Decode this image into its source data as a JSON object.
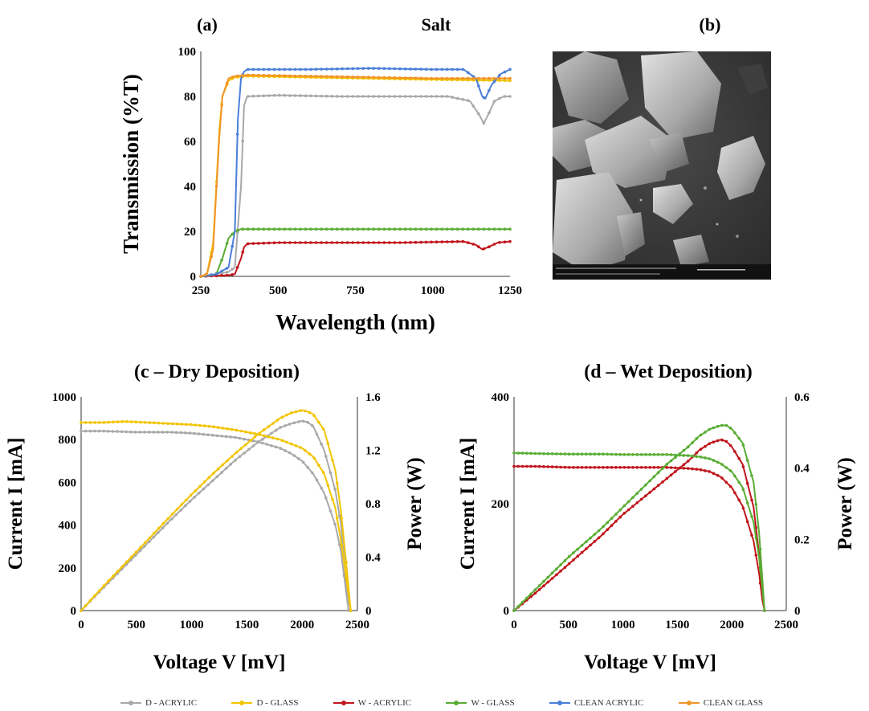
{
  "panel_a_label": "(a)",
  "panel_b_label": "(b)",
  "legend": [
    {
      "name": "D - ACRYLIC",
      "color": "#a9a9a9"
    },
    {
      "name": "D - GLASS",
      "color": "#f2c400"
    },
    {
      "name": "W - ACRYLIC",
      "color": "#c0161c"
    },
    {
      "name": "W - GLASS",
      "color": "#59ad34"
    },
    {
      "name": "CLEAN ACRYLIC",
      "color": "#4a7fd8"
    },
    {
      "name": "CLEAN GLASS",
      "color": "#f0952a"
    }
  ],
  "chart_data": [
    {
      "id": "a",
      "type": "line",
      "title": "Salt",
      "xlabel": "Wavelength (nm)",
      "ylabel": "Transmission (%T)",
      "xlim": [
        250,
        1250
      ],
      "ylim": [
        0,
        100
      ],
      "xticks": [
        250,
        500,
        750,
        1000,
        1250
      ],
      "yticks": [
        0,
        20,
        40,
        60,
        80,
        100
      ],
      "series": [
        {
          "name": "D - ACRYLIC",
          "color": "#a9a9a9",
          "x": [
            250,
            300,
            340,
            360,
            380,
            390,
            400,
            500,
            700,
            900,
            1050,
            1120,
            1150,
            1165,
            1180,
            1200,
            1230,
            1250
          ],
          "y": [
            0,
            1,
            2,
            4,
            40,
            76,
            80,
            80.5,
            80,
            80,
            80,
            78,
            72,
            68,
            72,
            78,
            80,
            80
          ]
        },
        {
          "name": "D - GLASS",
          "color": "#f2c400",
          "x": [
            250,
            270,
            290,
            300,
            310,
            320,
            340,
            360,
            400,
            600,
            800,
            1000,
            1250
          ],
          "y": [
            0,
            1,
            15,
            40,
            65,
            80,
            87,
            88.5,
            89,
            88.5,
            88,
            87.5,
            87
          ]
        },
        {
          "name": "W - ACRYLIC",
          "color": "#c0161c",
          "x": [
            250,
            340,
            360,
            380,
            390,
            400,
            500,
            700,
            900,
            1100,
            1140,
            1160,
            1180,
            1210,
            1250
          ],
          "y": [
            0,
            0.5,
            1,
            8,
            13,
            14.5,
            15,
            15,
            15,
            15.5,
            14,
            12,
            13,
            15,
            15.5
          ]
        },
        {
          "name": "W - GLASS",
          "color": "#59ad34",
          "x": [
            250,
            280,
            300,
            320,
            340,
            360,
            380,
            400,
            600,
            800,
            1000,
            1250
          ],
          "y": [
            0,
            0.5,
            1,
            8,
            17,
            20,
            21,
            21,
            21,
            21,
            21,
            21
          ]
        },
        {
          "name": "CLEAN ACRYLIC",
          "color": "#4a7fd8",
          "x": [
            250,
            300,
            340,
            360,
            370,
            380,
            390,
            400,
            600,
            800,
            1000,
            1100,
            1140,
            1160,
            1170,
            1190,
            1220,
            1250
          ],
          "y": [
            0,
            1,
            4,
            20,
            70,
            88,
            91,
            92,
            92,
            92.5,
            92,
            92,
            88,
            80,
            79,
            85,
            90,
            92
          ]
        },
        {
          "name": "CLEAN GLASS",
          "color": "#f0952a",
          "x": [
            250,
            270,
            290,
            300,
            310,
            320,
            340,
            360,
            400,
            600,
            800,
            1000,
            1250
          ],
          "y": [
            0,
            1,
            12,
            38,
            62,
            80,
            88,
            89,
            89.5,
            89,
            88.5,
            88,
            88
          ]
        }
      ]
    },
    {
      "id": "c",
      "type": "line",
      "title": "(c – Dry Deposition)",
      "xlabel": "Voltage V [mV]",
      "ylabel": "Current I [mA]",
      "y2label": "Power (W)",
      "xlim": [
        0,
        2500
      ],
      "ylim": [
        0,
        1000
      ],
      "y2lim": [
        0,
        1.6
      ],
      "xticks": [
        0,
        500,
        1000,
        1500,
        2000,
        2500
      ],
      "yticks": [
        0,
        200,
        400,
        600,
        800,
        1000
      ],
      "y2ticks": [
        0,
        0.4,
        0.8,
        1.2,
        1.6
      ],
      "series": [
        {
          "name": "D - ACRYLIC",
          "color": "#a9a9a9",
          "axis": "current",
          "x": [
            0,
            200,
            500,
            800,
            1000,
            1200,
            1400,
            1600,
            1800,
            1900,
            2000,
            2100,
            2200,
            2300,
            2350,
            2400,
            2420
          ],
          "y": [
            840,
            840,
            835,
            835,
            830,
            820,
            810,
            790,
            760,
            735,
            700,
            640,
            550,
            400,
            280,
            80,
            0
          ]
        },
        {
          "name": "D - ACRYLIC",
          "color": "#a9a9a9",
          "axis": "power",
          "x": [
            0,
            200,
            500,
            800,
            1000,
            1200,
            1400,
            1600,
            1800,
            1900,
            2000,
            2050,
            2100,
            2200,
            2300,
            2350,
            2400,
            2420
          ],
          "y": [
            0,
            0.17,
            0.42,
            0.67,
            0.83,
            0.98,
            1.13,
            1.26,
            1.37,
            1.4,
            1.42,
            1.41,
            1.38,
            1.2,
            0.9,
            0.65,
            0.2,
            0
          ]
        },
        {
          "name": "D - GLASS",
          "color": "#f2c400",
          "axis": "current",
          "x": [
            0,
            200,
            400,
            600,
            800,
            1000,
            1200,
            1400,
            1600,
            1800,
            1900,
            2000,
            2100,
            2200,
            2300,
            2350,
            2400,
            2440
          ],
          "y": [
            880,
            880,
            885,
            880,
            875,
            870,
            860,
            845,
            825,
            800,
            780,
            760,
            720,
            640,
            480,
            330,
            150,
            0
          ]
        },
        {
          "name": "D - GLASS",
          "color": "#f2c400",
          "axis": "power",
          "x": [
            0,
            200,
            500,
            800,
            1000,
            1200,
            1400,
            1600,
            1800,
            1900,
            2000,
            2050,
            2100,
            2200,
            2300,
            2350,
            2400,
            2440
          ],
          "y": [
            0,
            0.18,
            0.44,
            0.7,
            0.87,
            1.03,
            1.18,
            1.32,
            1.44,
            1.48,
            1.5,
            1.49,
            1.47,
            1.35,
            1.05,
            0.75,
            0.35,
            0
          ]
        }
      ]
    },
    {
      "id": "d",
      "type": "line",
      "title": "(d – Wet Deposition)",
      "xlabel": "Voltage V [mV]",
      "ylabel": "Current I [mA]",
      "y2label": "Power (W)",
      "xlim": [
        0,
        2500
      ],
      "ylim": [
        0,
        400
      ],
      "y2lim": [
        0,
        0.6
      ],
      "xticks": [
        0,
        500,
        1000,
        1500,
        2000,
        2500
      ],
      "yticks": [
        0,
        200,
        400
      ],
      "y2ticks": [
        0,
        0.2,
        0.4,
        0.6
      ],
      "series": [
        {
          "name": "W - ACRYLIC",
          "color": "#c0161c",
          "axis": "current",
          "x": [
            0,
            200,
            500,
            800,
            1000,
            1200,
            1400,
            1600,
            1700,
            1800,
            1900,
            2000,
            2100,
            2200,
            2250,
            2280,
            2300
          ],
          "y": [
            270,
            270,
            268,
            268,
            268,
            268,
            268,
            266,
            264,
            260,
            250,
            230,
            195,
            130,
            70,
            20,
            0
          ]
        },
        {
          "name": "W - ACRYLIC",
          "color": "#c0161c",
          "axis": "power",
          "x": [
            0,
            200,
            500,
            800,
            1000,
            1200,
            1400,
            1600,
            1700,
            1800,
            1900,
            1950,
            2000,
            2100,
            2200,
            2250,
            2280,
            2300
          ],
          "y": [
            0,
            0.05,
            0.13,
            0.21,
            0.27,
            0.32,
            0.37,
            0.42,
            0.45,
            0.47,
            0.48,
            0.475,
            0.46,
            0.41,
            0.29,
            0.16,
            0.05,
            0
          ]
        },
        {
          "name": "W - GLASS",
          "color": "#59ad34",
          "axis": "current",
          "x": [
            0,
            200,
            500,
            800,
            1000,
            1200,
            1400,
            1600,
            1700,
            1800,
            1900,
            2000,
            2100,
            2200,
            2250,
            2280,
            2300
          ],
          "y": [
            295,
            294,
            293,
            293,
            292,
            292,
            292,
            290,
            288,
            284,
            275,
            260,
            230,
            165,
            100,
            40,
            0
          ]
        },
        {
          "name": "W - GLASS",
          "color": "#59ad34",
          "axis": "power",
          "x": [
            0,
            200,
            500,
            800,
            1000,
            1200,
            1400,
            1600,
            1700,
            1800,
            1900,
            1950,
            2000,
            2100,
            2200,
            2250,
            2280,
            2300
          ],
          "y": [
            0,
            0.06,
            0.15,
            0.23,
            0.29,
            0.35,
            0.41,
            0.46,
            0.49,
            0.51,
            0.52,
            0.52,
            0.51,
            0.47,
            0.36,
            0.22,
            0.09,
            0
          ]
        }
      ]
    }
  ]
}
